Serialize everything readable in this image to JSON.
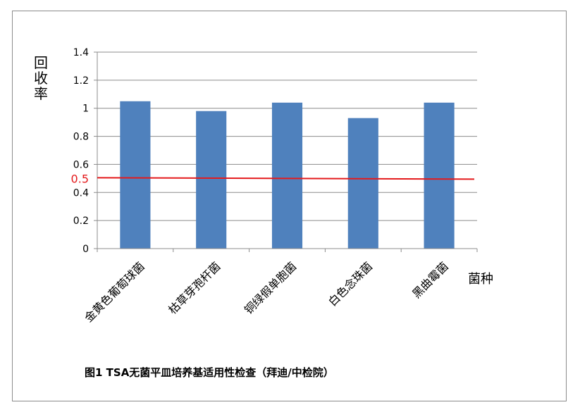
{
  "chart_data": {
    "type": "bar",
    "title": "",
    "xlabel": "菌种",
    "ylabel": "回收率",
    "categories": [
      "金黄色葡萄球菌",
      "枯草芽孢杆菌",
      "铜绿假单胞菌",
      "白色念珠菌",
      "黑曲霉菌"
    ],
    "series": [
      {
        "values": [
          1.05,
          0.98,
          1.04,
          0.93,
          1.04
        ]
      }
    ],
    "ylim": [
      0,
      1.4
    ],
    "yticks": [
      "0",
      "0.2",
      "0.4",
      "0.6",
      "0.8",
      "1",
      "1.2",
      "1.4"
    ],
    "reference_line": {
      "value": 0.5,
      "label": "0.5"
    },
    "grid": true,
    "legend": "none",
    "colors": {
      "bar": "#4f81bd",
      "reference": "#e41a1c",
      "grid": "#8c8c8c"
    }
  },
  "caption": "图1  TSA无菌平皿培养基适用性检查（拜迪/中检院）"
}
